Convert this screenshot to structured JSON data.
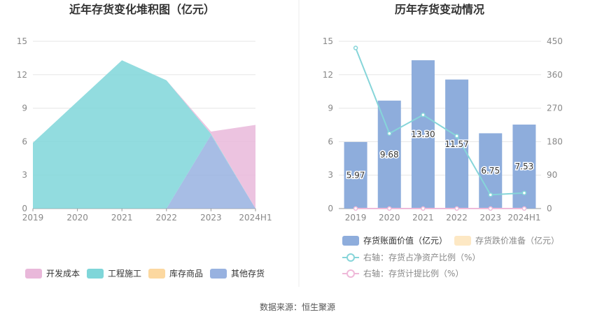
{
  "source": "数据来源：恒生聚源",
  "chart_data": [
    {
      "type": "area",
      "stacked": true,
      "title": "近年存货变化堆积图（亿元）",
      "categories": [
        "2019",
        "2020",
        "2021",
        "2022",
        "2023",
        "2024H1"
      ],
      "yticks": [
        "0",
        "3",
        "6",
        "9",
        "12",
        "15"
      ],
      "ylim": [
        0,
        15
      ],
      "grid": true,
      "legend_position": "bottom",
      "series": [
        {
          "name": "开发成本",
          "color": "#e9b8da",
          "values": [
            0,
            0,
            0,
            0,
            0.2,
            7.5
          ]
        },
        {
          "name": "工程施工",
          "color": "#7fd6d9",
          "values": [
            5.9,
            9.6,
            13.3,
            11.5,
            0.1,
            0
          ]
        },
        {
          "name": "库存商品",
          "color": "#fcd8a0",
          "values": [
            0,
            0,
            0,
            0,
            0,
            0
          ]
        },
        {
          "name": "其他存货",
          "color": "#98b2e0",
          "values": [
            0,
            0,
            0,
            0,
            6.6,
            0
          ]
        }
      ]
    },
    {
      "type": "bar",
      "title": "历年存货变动情况",
      "categories": [
        "2019",
        "2020",
        "2021",
        "2022",
        "2023",
        "2024H1"
      ],
      "left_yticks": [
        "0",
        "3",
        "6",
        "9",
        "12",
        "15"
      ],
      "right_yticks": [
        "0",
        "90",
        "180",
        "270",
        "360",
        "450"
      ],
      "ylim": [
        0,
        15
      ],
      "y2lim": [
        0,
        450
      ],
      "grid": true,
      "legend_position": "bottom",
      "bar_series": {
        "name": "存货账面价值（亿元）",
        "color": "#8eaddc",
        "values": [
          5.97,
          9.68,
          13.3,
          11.57,
          6.75,
          7.53
        ],
        "labels": [
          "5.97",
          "9.68",
          "13.30",
          "11.57",
          "6.75",
          "7.53"
        ]
      },
      "bar_series_2": {
        "name": "存货跌价准备（亿元）",
        "color": "#fde8c4",
        "values": [
          0,
          0,
          0,
          0,
          0,
          0
        ]
      },
      "line_series": [
        {
          "name": "右轴：存货占净资产比例（%）",
          "color": "#86d5d9",
          "values": [
            432,
            202,
            252,
            195,
            37,
            42
          ]
        },
        {
          "name": "右轴：存货计提比例（%）",
          "color": "#efb9d9",
          "values": [
            0,
            0,
            0,
            0,
            0,
            0
          ]
        }
      ]
    }
  ]
}
